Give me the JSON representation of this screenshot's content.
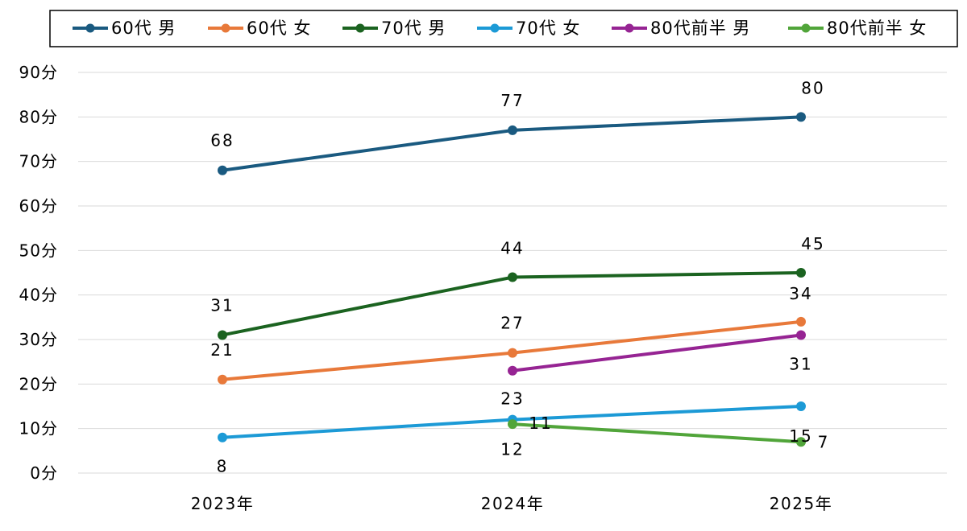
{
  "chart_data": {
    "type": "line",
    "categories": [
      "2023年",
      "2024年",
      "2025年"
    ],
    "y_ticks": [
      "0分",
      "10分",
      "20分",
      "30分",
      "40分",
      "50分",
      "60分",
      "70分",
      "80分",
      "90分"
    ],
    "ylim": [
      0,
      90
    ],
    "grid": true,
    "legend_position": "top",
    "series": [
      {
        "name": "60代 男",
        "color": "#1a5a80",
        "values": [
          68,
          77,
          80
        ],
        "labels": [
          "68",
          "77",
          "80"
        ]
      },
      {
        "name": "60代 女",
        "color": "#e8793a",
        "values": [
          21,
          27,
          34
        ],
        "labels": [
          "21",
          "27",
          "34"
        ]
      },
      {
        "name": "70代 男",
        "color": "#1b6320",
        "values": [
          31,
          44,
          45
        ],
        "labels": [
          "31",
          "44",
          "45"
        ]
      },
      {
        "name": "70代 女",
        "color": "#1c9ad6",
        "values": [
          8,
          12,
          15
        ],
        "labels": [
          "8",
          "12",
          "15"
        ]
      },
      {
        "name": "80代前半 男",
        "color": "#962493",
        "values": [
          null,
          23,
          31
        ],
        "labels": [
          null,
          "23",
          "31"
        ]
      },
      {
        "name": "80代前半 女",
        "color": "#51a53a",
        "values": [
          null,
          11,
          7
        ],
        "labels": [
          null,
          "11",
          "7"
        ]
      }
    ]
  }
}
